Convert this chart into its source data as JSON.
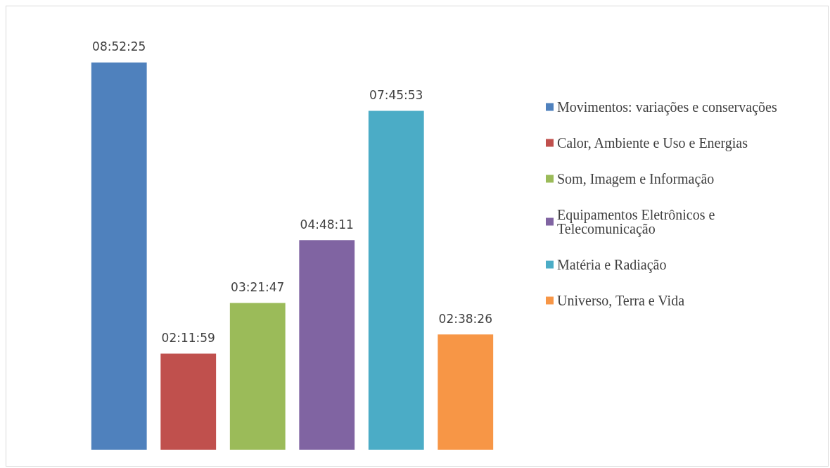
{
  "chart_data": {
    "type": "bar",
    "categories": [
      null
    ],
    "legend": "right",
    "series": [
      {
        "name": "Movimentos: variações e conservações",
        "color": "#4f81bd",
        "values": [
          8.87361
        ],
        "value_labels": [
          "08:52:25"
        ]
      },
      {
        "name": "Calor, Ambiente e Uso e Energias",
        "color": "#c0504d",
        "values": [
          2.19972
        ],
        "value_labels": [
          "02:11:59"
        ]
      },
      {
        "name": "Som, Imagem e Informação",
        "color": "#9bbb59",
        "values": [
          3.36306
        ],
        "value_labels": [
          "03:21:47"
        ]
      },
      {
        "name": "Equipamentos Eletrônicos e Telecomunicação",
        "color": "#8064a2",
        "values": [
          4.80306
        ],
        "value_labels": [
          "04:48:11"
        ]
      },
      {
        "name": "Matéria e Radiação",
        "color": "#4bacc6",
        "values": [
          7.76472
        ],
        "value_labels": [
          "07:45:53"
        ]
      },
      {
        "name": "Universo, Terra e Vida",
        "color": "#f79646",
        "values": [
          2.64056
        ],
        "value_labels": [
          "02:38:26"
        ]
      }
    ]
  }
}
